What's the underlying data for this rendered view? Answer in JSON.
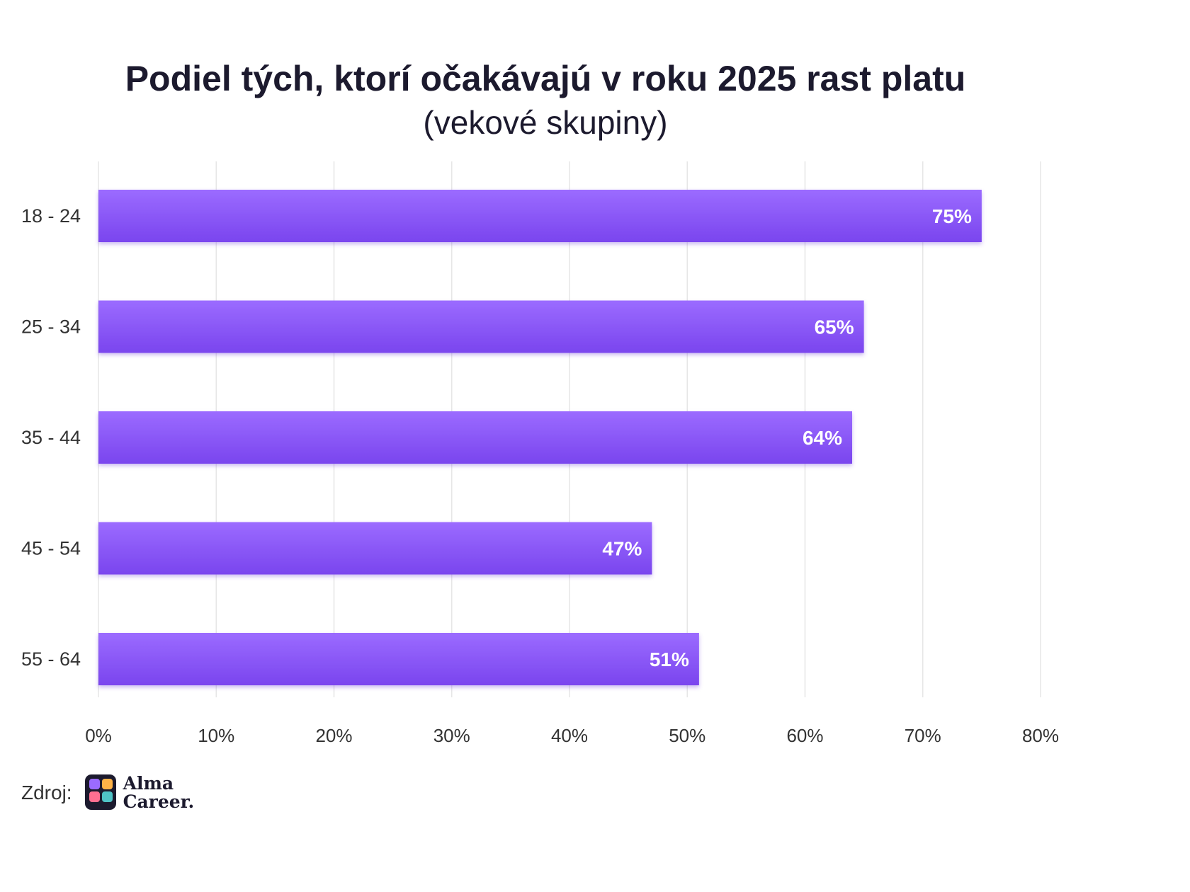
{
  "chart_data": {
    "type": "bar",
    "orientation": "horizontal",
    "title": "Podiel tých, ktorí očakávajú v roku 2025 rast platu",
    "subtitle": "(vekové skupiny)",
    "categories": [
      "18 - 24",
      "25 - 34",
      "35 - 44",
      "45 - 54",
      "55 - 64"
    ],
    "values": [
      75,
      65,
      64,
      47,
      51
    ],
    "data_labels": [
      "75%",
      "65%",
      "64%",
      "47%",
      "51%"
    ],
    "xlim": [
      0,
      80
    ],
    "x_ticks": [
      0,
      10,
      20,
      30,
      40,
      50,
      60,
      70,
      80
    ],
    "x_tick_labels": [
      "0%",
      "10%",
      "20%",
      "30%",
      "40%",
      "50%",
      "60%",
      "70%",
      "80%"
    ],
    "grid": true,
    "legend": "none",
    "bar_color_top": "#9b6bff",
    "bar_color_bottom": "#7a45ee",
    "label_color": "#ffffff"
  },
  "footer": {
    "source_label": "Zdroj:",
    "logo_name": "alma-career-logo",
    "logo_line1": "Alma",
    "logo_line2": "Career."
  }
}
